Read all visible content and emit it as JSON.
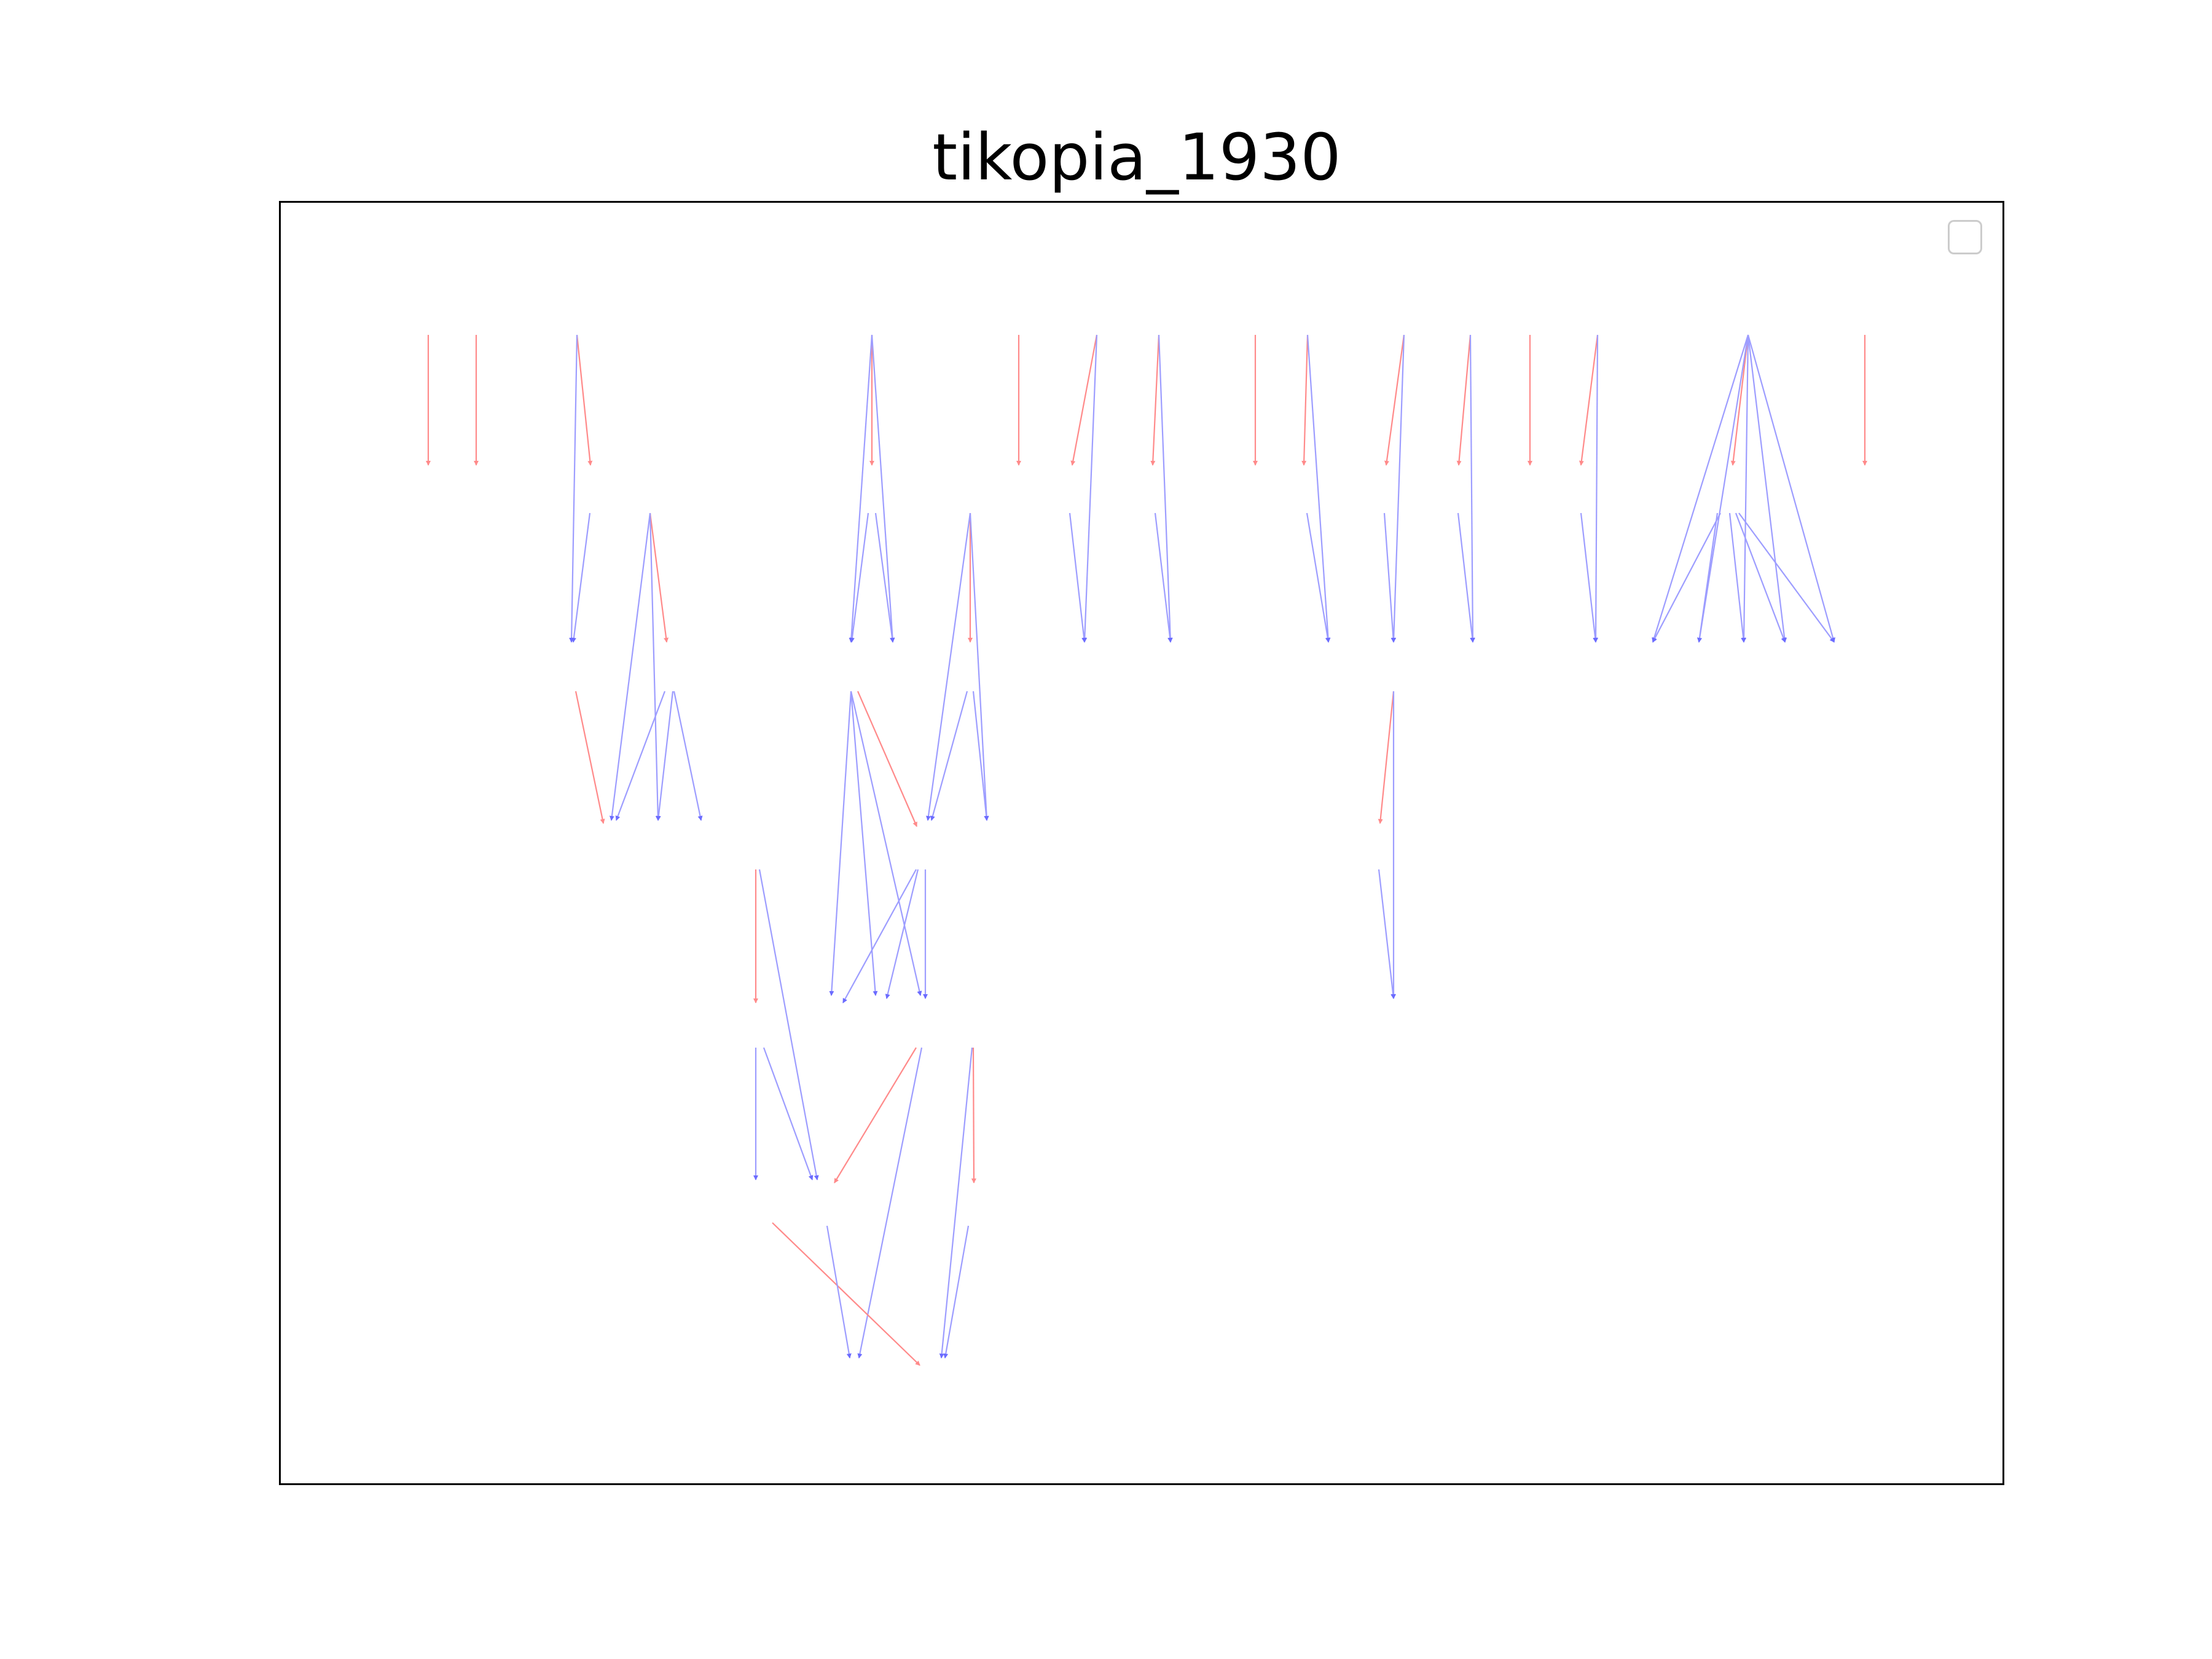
{
  "title": "tikopia_1930",
  "colors": {
    "red_edge": "#ff6060",
    "blue_edge": "#6666ff",
    "frame": "#000000",
    "legend_border": "#cccccc",
    "background": "#ffffff"
  },
  "legend": {
    "entries": []
  },
  "diagram": {
    "type": "directed-genealogy-tree",
    "edge_styles": [
      "red",
      "blue"
    ],
    "generations_visible": 7
  }
}
